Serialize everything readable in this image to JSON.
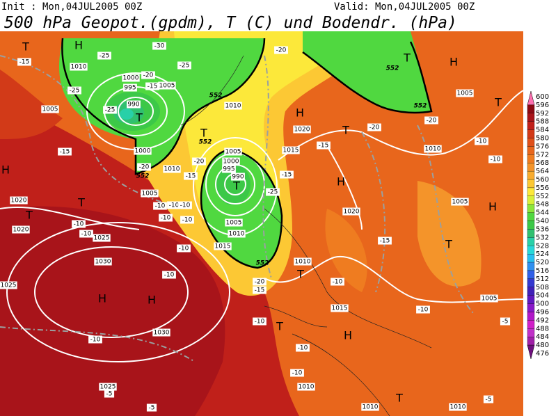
{
  "header": {
    "init": "Init : Mon,04JUL2005 00Z",
    "valid": "Valid: Mon,04JUL2005 00Z",
    "title": "500 hPa Geopot.(gpdm), T (C) und Bodendr. (hPa)"
  },
  "colorbar": {
    "levels": [
      600,
      596,
      592,
      588,
      584,
      580,
      576,
      572,
      568,
      564,
      560,
      556,
      552,
      548,
      544,
      540,
      536,
      532,
      528,
      524,
      520,
      516,
      512,
      508,
      504,
      500,
      496,
      492,
      488,
      484,
      480,
      476
    ],
    "colors": [
      "#ff6fb0",
      "#8c0a14",
      "#a8141a",
      "#c0201a",
      "#d23a18",
      "#e0501a",
      "#e8661c",
      "#ef7c20",
      "#f4942a",
      "#f8ac30",
      "#fcc834",
      "#fce83a",
      "#d8f03a",
      "#8ce63c",
      "#50d840",
      "#3cc848",
      "#30c070",
      "#28d0a8",
      "#28d8d8",
      "#28c0f0",
      "#3090f0",
      "#3060e8",
      "#3438d0",
      "#4020b8",
      "#6018c0",
      "#8818c8",
      "#b018c8",
      "#d020c8",
      "#c030c8",
      "#a020a8",
      "#701080"
    ]
  },
  "map": {
    "pressure_centers": [
      "T",
      "H",
      "T",
      "T",
      "T",
      "H",
      "T",
      "H",
      "T",
      "H",
      "T",
      "H",
      "T",
      "T",
      "H",
      "T",
      "T",
      "H",
      "H",
      "T",
      "H",
      "T"
    ],
    "isobar_labels": [
      "1010",
      "1000",
      "995",
      "990",
      "1005",
      "1005",
      "1000",
      "1010",
      "1010",
      "1020",
      "1015",
      "1005",
      "1000",
      "995",
      "990",
      "1005",
      "1005",
      "1010",
      "1015",
      "1020",
      "1020",
      "1020",
      "1025",
      "1030",
      "1030",
      "1025",
      "1025",
      "1010",
      "1010",
      "1005",
      "1005",
      "1005",
      "1015",
      "1010",
      "1010",
      "1010"
    ],
    "temperature_labels": [
      "-15",
      "-25",
      "-30",
      "-25",
      "-25",
      "-20",
      "-15",
      "-25",
      "-20",
      "-15",
      "-15",
      "-20",
      "-15",
      "-25",
      "-20",
      "-20",
      "-20",
      "-15",
      "-10",
      "-10",
      "-10",
      "-10",
      "-10",
      "-10",
      "-10",
      "-10",
      "-10",
      "-10",
      "-15",
      "-10",
      "-20",
      "-15",
      "-10",
      "-10",
      "-10",
      "-10",
      "-10",
      "-10",
      "-5",
      "-5",
      "-5",
      "-5"
    ],
    "geopotential_labels": [
      "552",
      "552",
      "552",
      "552",
      "552",
      "552"
    ]
  }
}
